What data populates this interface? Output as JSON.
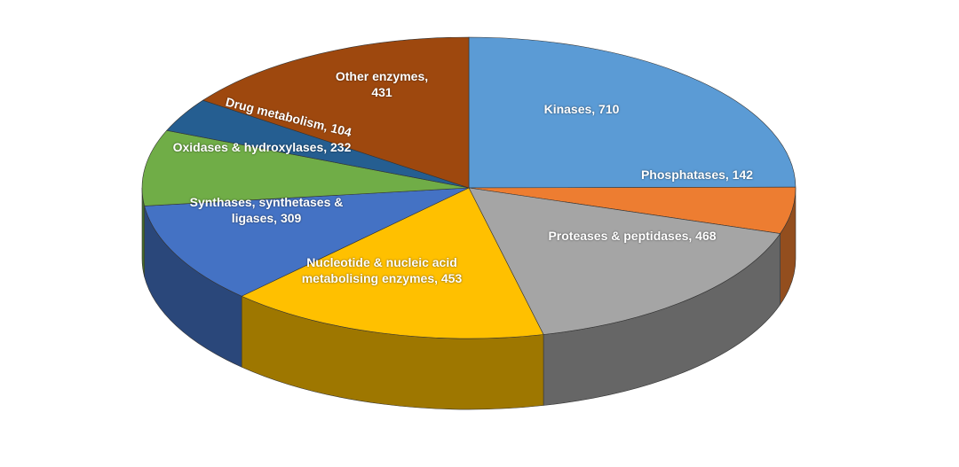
{
  "chart_data": {
    "type": "pie3d",
    "values": [
      710,
      142,
      468,
      453,
      309,
      232,
      104,
      431
    ],
    "value_labels": [
      "Kinases, 710",
      "Phosphatases, 142",
      "Proteases & peptidases, 468",
      "Nucleotide & nucleic acid metabolising enzymes, 453",
      "Synthases, synthetases & ligases, 309",
      "Oxidases & hydroxylases, 232",
      "Drug metabolism, 104",
      "Other enzymes, 431"
    ],
    "colors": [
      "#5b9bd5",
      "#ed7d31",
      "#a5a5a5",
      "#ffc000",
      "#4472c4",
      "#70ad47",
      "#255e91",
      "#9e480e"
    ]
  }
}
